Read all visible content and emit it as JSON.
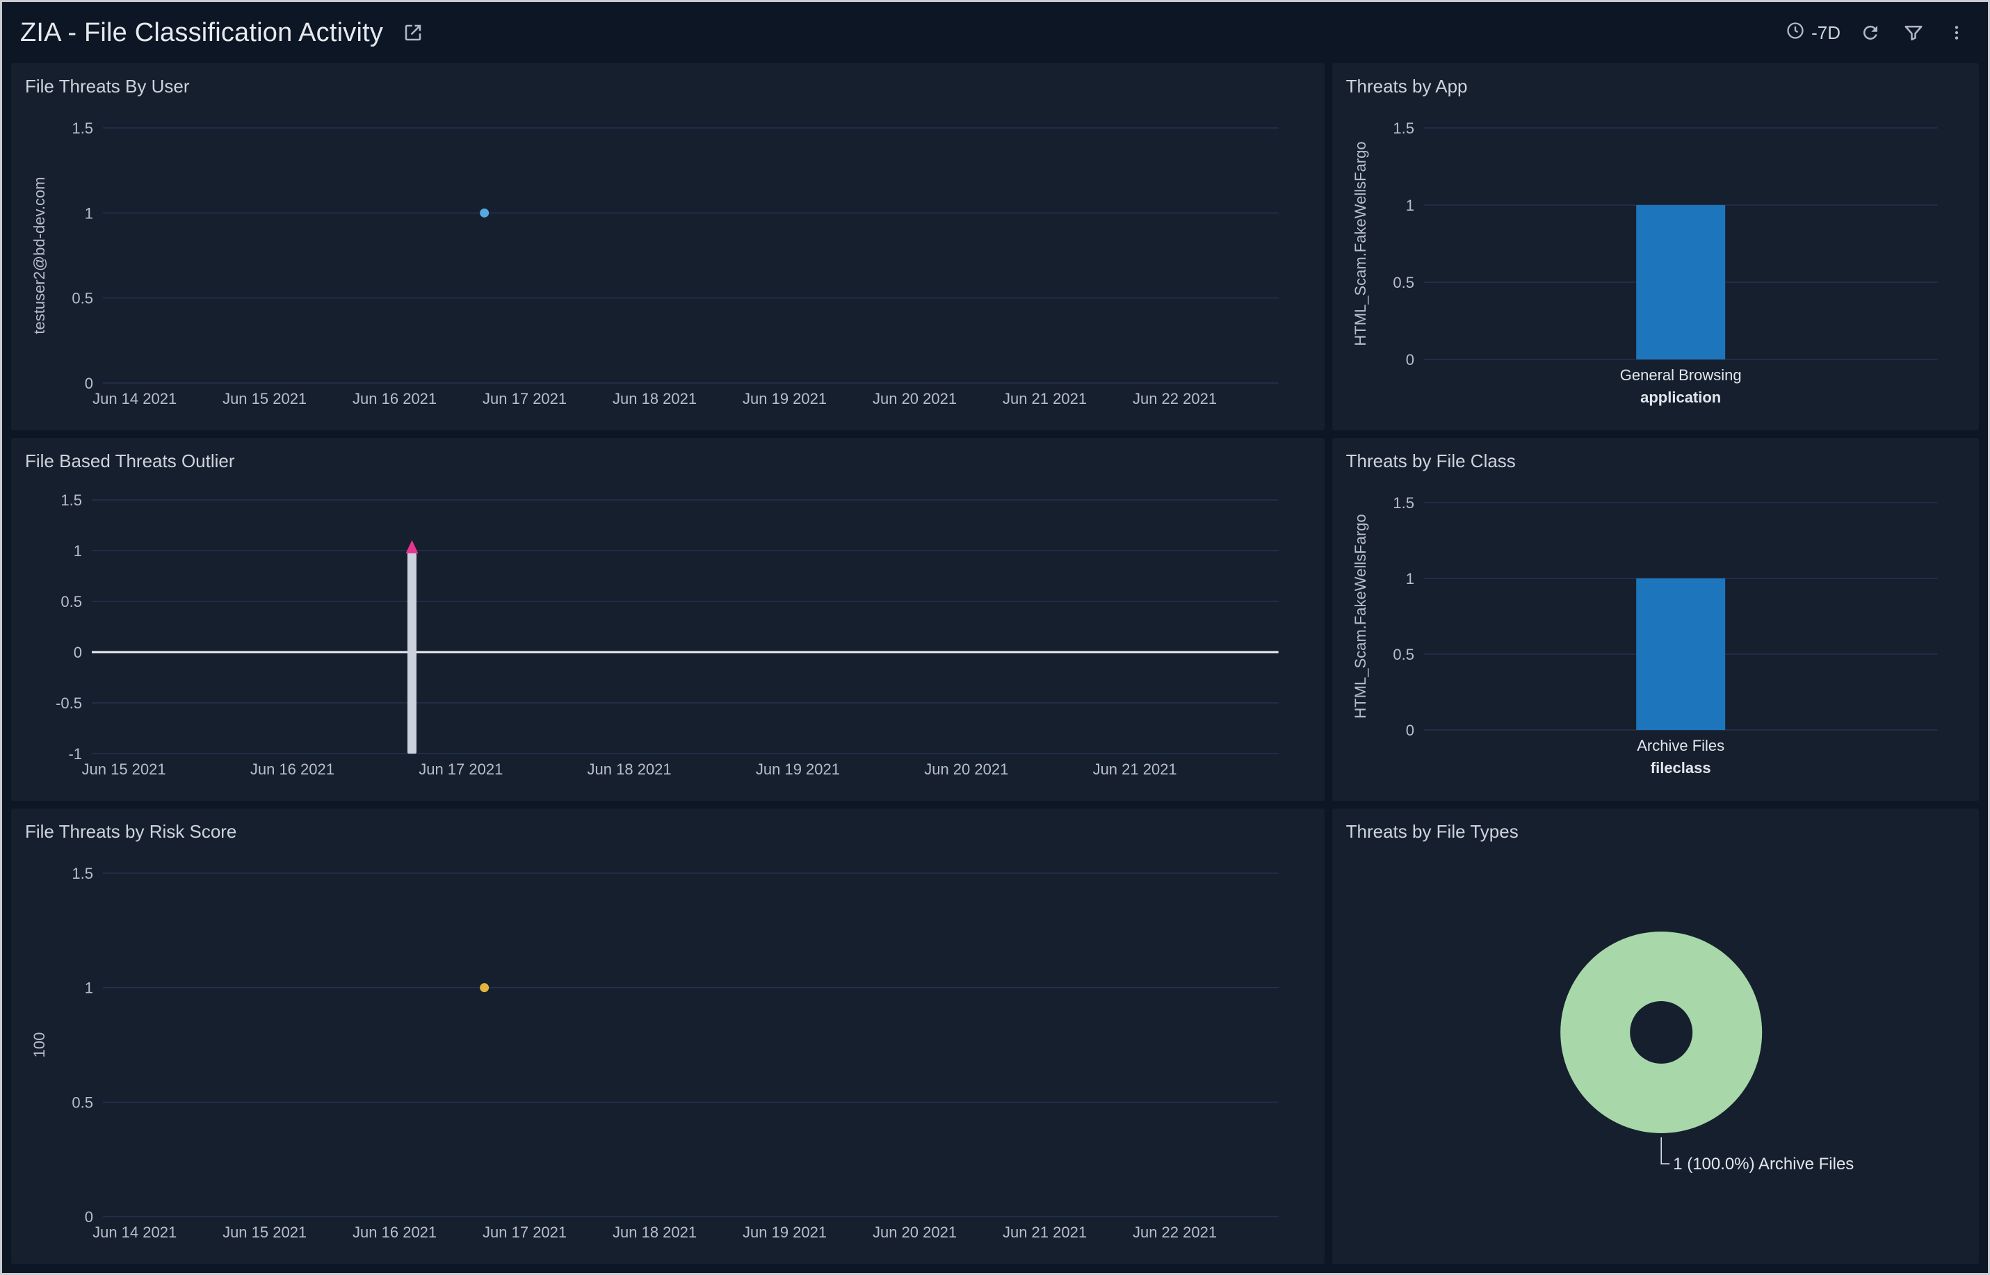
{
  "theme": {
    "page_bg": "#0d1624",
    "panel_bg": "#161f2e",
    "frame_border": "#c9ccd2",
    "grid": "#263052",
    "tick": "#b8bec9",
    "label": "#e2e6ec",
    "title": "#ced3db",
    "header_title": "#e6e9ee",
    "icon": "#b2b9c4"
  },
  "header": {
    "title": "ZIA - File Classification Activity",
    "share_icon": "open-in-new-icon",
    "time_range": "-7D",
    "controls": [
      "clock-icon",
      "refresh-icon",
      "filter-icon",
      "kebab-menu-icon"
    ]
  },
  "chart_data": [
    {
      "id": "file-threats-by-user",
      "title": "File Threats By User",
      "type": "scatter",
      "ylabel": "testuser2@bd-dev.com",
      "ymin": 0,
      "ymax": 1.5,
      "yticks": [
        0,
        0.5,
        1,
        1.5
      ],
      "xticks": [
        "Jun 14 2021",
        "Jun 15 2021",
        "Jun 16 2021",
        "Jun 17 2021",
        "Jun 18 2021",
        "Jun 19 2021",
        "Jun 20 2021",
        "Jun 21 2021",
        "Jun 22 2021"
      ],
      "points": [
        {
          "x_approx": "Jun 16 2021",
          "x_days_from_first_tick": 2.69,
          "y": 1,
          "color": "#56a8de"
        }
      ]
    },
    {
      "id": "threats-by-app",
      "title": "Threats by App",
      "type": "bar",
      "ylabel": "HTML_Scam.FakeWellsFargo",
      "xlabel": "application",
      "ymin": 0,
      "ymax": 1.5,
      "yticks": [
        0,
        0.5,
        1,
        1.5
      ],
      "categories": [
        "General Browsing"
      ],
      "values": [
        1
      ],
      "bar_color": "#1d76bb"
    },
    {
      "id": "file-based-threats-outlier",
      "title": "File Based Threats Outlier",
      "type": "outlier",
      "ymin": -1,
      "ymax": 1.5,
      "yticks": [
        -1,
        -0.5,
        0,
        0.5,
        1,
        1.5
      ],
      "xticks": [
        "Jun 15 2021",
        "Jun 16 2021",
        "Jun 17 2021",
        "Jun 18 2021",
        "Jun 19 2021",
        "Jun 20 2021",
        "Jun 21 2021"
      ],
      "baseline_y": 0,
      "baseline_color": "#eceef2",
      "band": {
        "x_approx": "Jun 16 2021",
        "x_days_from_first_tick": 1.71,
        "low": -1,
        "high": 1,
        "color": "#ccd2dd",
        "marker_y": 1,
        "marker_color": "#e5368f"
      }
    },
    {
      "id": "threats-by-file-class",
      "title": "Threats by File Class",
      "type": "bar",
      "ylabel": "HTML_Scam.FakeWellsFargo",
      "xlabel": "fileclass",
      "ymin": 0,
      "ymax": 1.5,
      "yticks": [
        0,
        0.5,
        1,
        1.5
      ],
      "categories": [
        "Archive Files"
      ],
      "values": [
        1
      ],
      "bar_color": "#1d76bb"
    },
    {
      "id": "file-threats-by-risk-score",
      "title": "File Threats by Risk Score",
      "type": "scatter",
      "ylabel": "100",
      "ymin": 0,
      "ymax": 1.5,
      "yticks": [
        0,
        0.5,
        1,
        1.5
      ],
      "xticks": [
        "Jun 14 2021",
        "Jun 15 2021",
        "Jun 16 2021",
        "Jun 17 2021",
        "Jun 18 2021",
        "Jun 19 2021",
        "Jun 20 2021",
        "Jun 21 2021",
        "Jun 22 2021"
      ],
      "points": [
        {
          "x_approx": "Jun 16 2021",
          "x_days_from_first_tick": 2.69,
          "y": 1,
          "color": "#e4b33e"
        }
      ]
    },
    {
      "id": "threats-by-file-types",
      "title": "Threats by File Types",
      "type": "donut",
      "slices": [
        {
          "label": "Archive Files",
          "value": 1,
          "percent": "100.0%",
          "color": "#a8d8aa"
        }
      ],
      "callout": "1 (100.0%) Archive Files"
    }
  ]
}
